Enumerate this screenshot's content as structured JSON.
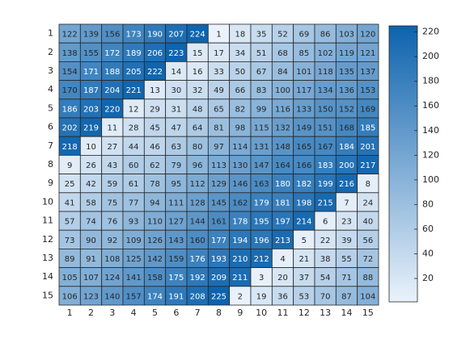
{
  "chart_data": {
    "type": "heatmap",
    "x_categories": [
      "1",
      "2",
      "3",
      "4",
      "5",
      "6",
      "7",
      "8",
      "9",
      "10",
      "11",
      "12",
      "13",
      "14",
      "15"
    ],
    "y_categories": [
      "1",
      "2",
      "3",
      "4",
      "5",
      "6",
      "7",
      "8",
      "9",
      "10",
      "11",
      "12",
      "13",
      "14",
      "15"
    ],
    "values": [
      [
        122,
        139,
        156,
        173,
        190,
        207,
        224,
        1,
        18,
        35,
        52,
        69,
        86,
        103,
        120
      ],
      [
        138,
        155,
        172,
        189,
        206,
        223,
        15,
        17,
        34,
        51,
        68,
        85,
        102,
        119,
        121
      ],
      [
        154,
        171,
        188,
        205,
        222,
        14,
        16,
        33,
        50,
        67,
        84,
        101,
        118,
        135,
        137
      ],
      [
        170,
        187,
        204,
        221,
        13,
        30,
        32,
        49,
        66,
        83,
        100,
        117,
        134,
        136,
        153
      ],
      [
        186,
        203,
        220,
        12,
        29,
        31,
        48,
        65,
        82,
        99,
        116,
        133,
        150,
        152,
        169
      ],
      [
        202,
        219,
        11,
        28,
        45,
        47,
        64,
        81,
        98,
        115,
        132,
        149,
        151,
        168,
        185
      ],
      [
        218,
        10,
        27,
        44,
        46,
        63,
        80,
        97,
        114,
        131,
        148,
        165,
        167,
        184,
        201
      ],
      [
        9,
        26,
        43,
        60,
        62,
        79,
        96,
        113,
        130,
        147,
        164,
        166,
        183,
        200,
        217
      ],
      [
        25,
        42,
        59,
        61,
        78,
        95,
        112,
        129,
        146,
        163,
        180,
        182,
        199,
        216,
        8
      ],
      [
        41,
        58,
        75,
        77,
        94,
        111,
        128,
        145,
        162,
        179,
        181,
        198,
        215,
        7,
        24
      ],
      [
        57,
        74,
        76,
        93,
        110,
        127,
        144,
        161,
        178,
        195,
        197,
        214,
        6,
        23,
        40
      ],
      [
        73,
        90,
        92,
        109,
        126,
        143,
        160,
        177,
        194,
        196,
        213,
        5,
        22,
        39,
        56
      ],
      [
        89,
        91,
        108,
        125,
        142,
        159,
        176,
        193,
        210,
        212,
        4,
        21,
        38,
        55,
        72
      ],
      [
        105,
        107,
        124,
        141,
        158,
        175,
        192,
        209,
        211,
        3,
        20,
        37,
        54,
        71,
        88
      ],
      [
        106,
        123,
        140,
        157,
        174,
        191,
        208,
        225,
        2,
        19,
        36,
        53,
        70,
        87,
        104
      ]
    ],
    "colormap": [
      "#eaf2fb",
      "#0d63ad"
    ],
    "clim": [
      1,
      225
    ],
    "cticks": [
      20,
      40,
      60,
      80,
      100,
      120,
      140,
      160,
      180,
      200,
      220
    ]
  }
}
